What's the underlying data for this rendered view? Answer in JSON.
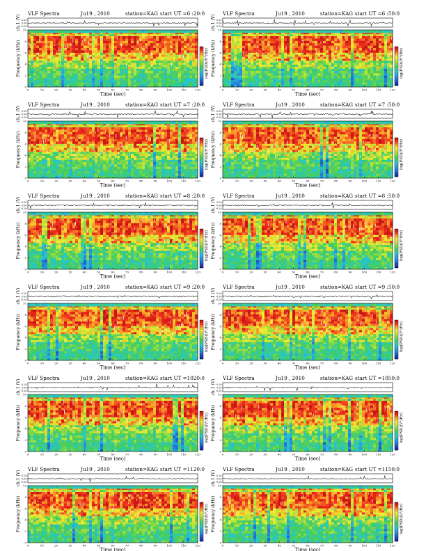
{
  "page": {
    "common": {
      "title_left": "VLF Spectra",
      "station": "station=KAG",
      "channel_label": "ch.1 (V)",
      "freq_label": "Frequency  (kHz)",
      "time_label": "Time  (sec)",
      "colorbar_label": "log(PSD)(V²/Hz)",
      "line_ticks": [
        "0.20",
        "0.00",
        "-0.20"
      ],
      "freq_ticks": [
        "0",
        "2",
        "4",
        "6",
        "8",
        "10"
      ],
      "time_ticks": [
        "0",
        "10",
        "20",
        "30",
        "40",
        "50",
        "60",
        "70",
        "80",
        "90",
        "100",
        "110",
        "120"
      ]
    }
  },
  "chart_data": [
    {
      "type": "heatmap",
      "date": "Ju19 , 2010",
      "start": "start  UT =6 :20:0",
      "xlim": [
        0,
        120
      ],
      "ylim": [
        0,
        10
      ],
      "xlabel": "Time  (sec)",
      "ylabel": "Frequency  (kHz)",
      "colorbar": "log(PSD)(V²/Hz)",
      "colors": {
        "low": "#2d6be0",
        "mid": "#3ecf5c",
        "high": "#ef2a1e"
      }
    },
    {
      "type": "heatmap",
      "date": "Ju19 , 2010",
      "start": "start  UT =6 :50:0",
      "xlim": [
        0,
        120
      ],
      "ylim": [
        0,
        10
      ],
      "xlabel": "Time  (sec)",
      "ylabel": "Frequency  (kHz)",
      "colorbar": "log(PSD)(V²/Hz)",
      "colors": {
        "low": "#2d6be0",
        "mid": "#3ecf5c",
        "high": "#ef2a1e"
      }
    },
    {
      "type": "heatmap",
      "date": "Ju19 , 2010",
      "start": "start  UT =7 :20:0",
      "xlim": [
        0,
        120
      ],
      "ylim": [
        0,
        10
      ],
      "xlabel": "Time  (sec)",
      "ylabel": "Frequency  (kHz)",
      "colorbar": "log(PSD)(V²/Hz)",
      "colors": {
        "low": "#2d6be0",
        "mid": "#3ecf5c",
        "high": "#ef2a1e"
      }
    },
    {
      "type": "heatmap",
      "date": "Ju19 , 2010",
      "start": "start  UT =7 :50:0",
      "xlim": [
        0,
        120
      ],
      "ylim": [
        0,
        10
      ],
      "xlabel": "Time  (sec)",
      "ylabel": "Frequency  (kHz)",
      "colorbar": "log(PSD)(V²/Hz)",
      "colors": {
        "low": "#2d6be0",
        "mid": "#3ecf5c",
        "high": "#ef2a1e"
      }
    },
    {
      "type": "heatmap",
      "date": "Ju19 , 2010",
      "start": "start  UT =8 :20:0",
      "xlim": [
        0,
        120
      ],
      "ylim": [
        0,
        10
      ],
      "xlabel": "Time  (sec)",
      "ylabel": "Frequency  (kHz)",
      "colorbar": "log(PSD)(V²/Hz)",
      "colors": {
        "low": "#2d6be0",
        "mid": "#3ecf5c",
        "high": "#ef2a1e"
      }
    },
    {
      "type": "heatmap",
      "date": "Ju19 , 2010",
      "start": "start  UT =8 :50:0",
      "xlim": [
        0,
        120
      ],
      "ylim": [
        0,
        10
      ],
      "xlabel": "Time  (sec)",
      "ylabel": "Frequency  (kHz)",
      "colorbar": "log(PSD)(V²/Hz)",
      "colors": {
        "low": "#2d6be0",
        "mid": "#3ecf5c",
        "high": "#ef2a1e"
      }
    },
    {
      "type": "heatmap",
      "date": "Ju19 , 2010",
      "start": "start  UT =9 :20:0",
      "xlim": [
        0,
        120
      ],
      "ylim": [
        0,
        10
      ],
      "xlabel": "Time  (sec)",
      "ylabel": "Frequency  (kHz)",
      "colorbar": "log(PSD)(V²/Hz)",
      "colors": {
        "low": "#2d6be0",
        "mid": "#3ecf5c",
        "high": "#ef2a1e"
      }
    },
    {
      "type": "heatmap",
      "date": "Ju19 , 2010",
      "start": "start  UT =9 :50:0",
      "xlim": [
        0,
        120
      ],
      "ylim": [
        0,
        10
      ],
      "xlabel": "Time  (sec)",
      "ylabel": "Frequency  (kHz)",
      "colorbar": "log(PSD)(V²/Hz)",
      "colors": {
        "low": "#2d6be0",
        "mid": "#3ecf5c",
        "high": "#ef2a1e"
      }
    },
    {
      "type": "heatmap",
      "date": "Ju19 , 2010",
      "start": "start  UT =1020:0",
      "xlim": [
        0,
        120
      ],
      "ylim": [
        0,
        10
      ],
      "xlabel": "Time  (sec)",
      "ylabel": "Frequency  (kHz)",
      "colorbar": "log(PSD)(V²/Hz)",
      "colors": {
        "low": "#2d6be0",
        "mid": "#3ecf5c",
        "high": "#ef2a1e"
      }
    },
    {
      "type": "heatmap",
      "date": "Ju19 , 2010",
      "start": "start  UT =1050:0",
      "xlim": [
        0,
        120
      ],
      "ylim": [
        0,
        10
      ],
      "xlabel": "Time  (sec)",
      "ylabel": "Frequency  (kHz)",
      "colorbar": "log(PSD)(V²/Hz)",
      "colors": {
        "low": "#2d6be0",
        "mid": "#3ecf5c",
        "high": "#ef2a1e"
      }
    },
    {
      "type": "heatmap",
      "date": "Ju19 , 2010",
      "start": "start  UT =1120:0",
      "xlim": [
        0,
        120
      ],
      "ylim": [
        0,
        10
      ],
      "xlabel": "Time  (sec)",
      "ylabel": "Frequency  (kHz)",
      "colorbar": "log(PSD)(V²/Hz)",
      "colors": {
        "low": "#2d6be0",
        "mid": "#3ecf5c",
        "high": "#ef2a1e"
      }
    },
    {
      "type": "heatmap",
      "date": "Ju19 , 2010",
      "start": "start  UT =1150:0",
      "xlim": [
        0,
        120
      ],
      "ylim": [
        0,
        10
      ],
      "xlabel": "Time  (sec)",
      "ylabel": "Frequency  (kHz)",
      "colorbar": "log(PSD)(V²/Hz)",
      "colors": {
        "low": "#2d6be0",
        "mid": "#3ecf5c",
        "high": "#ef2a1e"
      }
    }
  ]
}
